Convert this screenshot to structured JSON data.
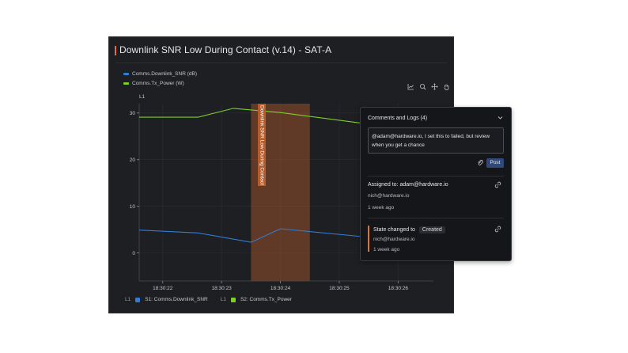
{
  "panel": {
    "title": "Downlink SNR Low During Contact (v.14) - SAT-A",
    "colors": {
      "accent": "#e8702a",
      "series1": "#2f7dd6",
      "series2": "#7ccf29",
      "annotation": "#b45c2c"
    }
  },
  "legend_top": [
    {
      "label": "Comms.Downlink_SNR (dB)",
      "color": "#2f7dd6"
    },
    {
      "label": "Comms.Tx_Power (W)",
      "color": "#7ccf29"
    }
  ],
  "toolbar": {
    "icons": [
      "chart-icon",
      "zoom-icon",
      "pan-icon",
      "hand-icon"
    ]
  },
  "chart_data": {
    "type": "line",
    "y_axis_label": "L1",
    "yticks": [
      0,
      10,
      20,
      30
    ],
    "ytick_labels": [
      "0",
      "10",
      "20",
      "30"
    ],
    "ylim": [
      -6,
      32
    ],
    "xlim": [
      "18:30:21.6",
      "18:30:26.6"
    ],
    "xticks": [
      "18:30:22",
      "18:30:23",
      "18:30:24",
      "18:30:25",
      "18:30:26"
    ],
    "series": [
      {
        "name": "S1: Comms.Downlink_SNR",
        "color": "#2f7dd6",
        "x": [
          "18:30:21.6",
          "18:30:22.6",
          "18:30:23.5",
          "18:30:24.0",
          "18:30:25.4"
        ],
        "y": [
          4.9,
          4.3,
          2.3,
          5.2,
          3.5
        ]
      },
      {
        "name": "S2: Comms.Tx_Power",
        "color": "#7ccf29",
        "x": [
          "18:30:21.6",
          "18:30:22.6",
          "18:30:23.2",
          "18:30:24.0",
          "18:30:25.4"
        ],
        "y": [
          29.1,
          29.1,
          31.0,
          30.1,
          27.8
        ]
      }
    ],
    "annotation": {
      "label": "Downlink SNR Low During Contact",
      "x_start": "18:30:23.5",
      "x_end": "18:30:24.5"
    },
    "grid": true
  },
  "legend_bottom": [
    {
      "axis": "L1",
      "label": "S1: Comms.Downlink_SNR",
      "color": "#2f7dd6"
    },
    {
      "axis": "L1",
      "label": "S2: Comms.Tx_Power",
      "color": "#7ccf29"
    }
  ],
  "comments": {
    "header": "Comments and Logs (4)",
    "draft_text": "@adam@hardware.io, I set this to failed, but review when you get a chance",
    "post_label": "Post",
    "entries": [
      {
        "title": "Assigned to: adam@hardware.io",
        "author": "nich@hardware.io",
        "time": "1 week ago"
      },
      {
        "title_prefix": "State changed to",
        "state": "Created",
        "author": "nich@hardware.io",
        "time": "1 week ago"
      }
    ]
  }
}
